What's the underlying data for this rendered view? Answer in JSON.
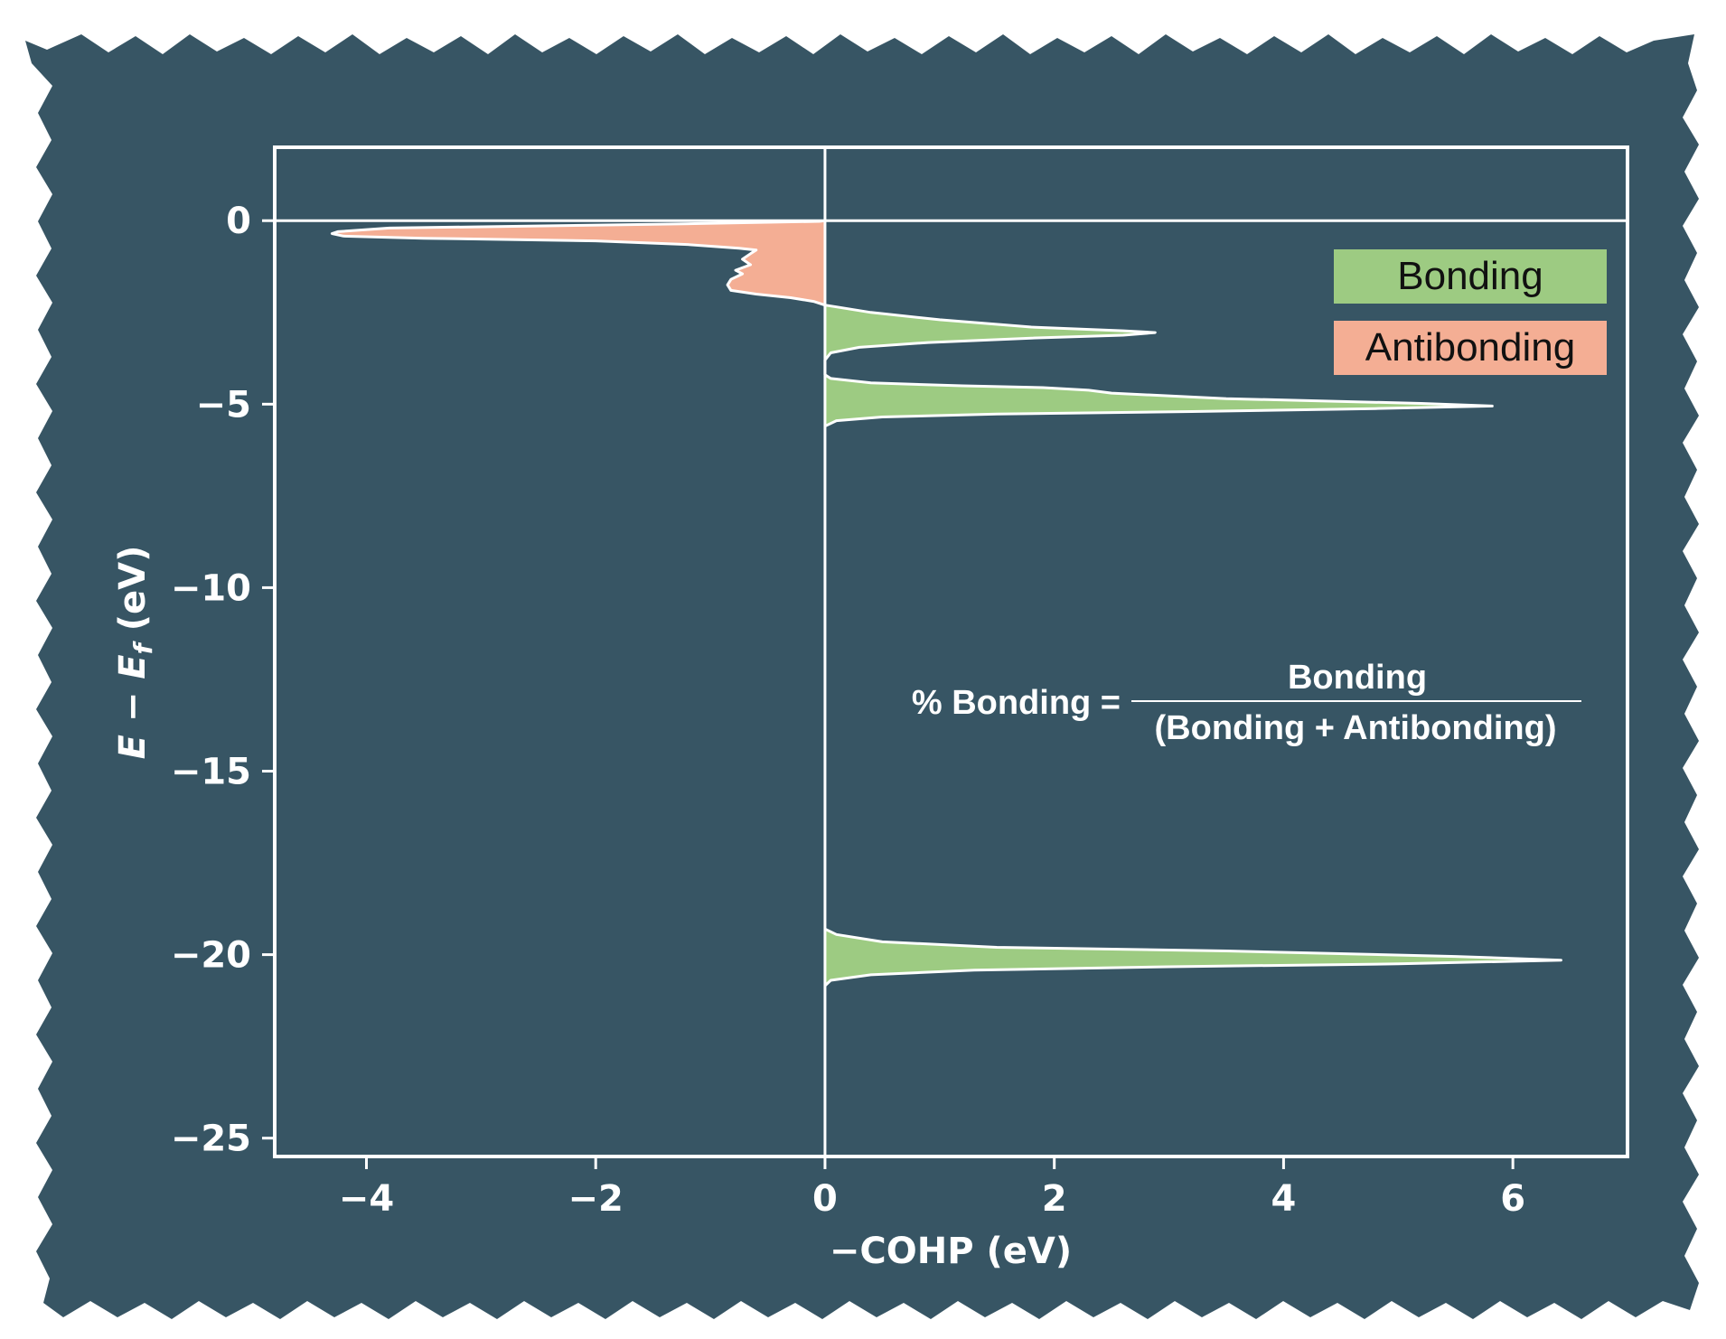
{
  "chart_data": {
    "type": "area",
    "orientation": "horizontal",
    "xlabel": "−COHP (eV)",
    "ylabel": "E − E_f (eV)",
    "ylabel_parts": {
      "e": "E",
      "minus": " − ",
      "ef": "E",
      "sub": "f",
      "unit": " (eV)"
    },
    "xlim": [
      -4.8,
      7.0
    ],
    "ylim": [
      -25.5,
      2.0
    ],
    "xticks": [
      -4,
      -2,
      0,
      2,
      4,
      6
    ],
    "xtick_labels": [
      "−4",
      "−2",
      "0",
      "2",
      "4",
      "6"
    ],
    "yticks": [
      0,
      -5,
      -10,
      -15,
      -20,
      -25
    ],
    "ytick_labels": [
      "0",
      "−5",
      "−10",
      "−15",
      "−20",
      "−25"
    ],
    "fermi_level": 0,
    "grid": false,
    "legend": {
      "placement": "top-right",
      "entries": [
        {
          "label": "Bonding",
          "color": "#9dcb82"
        },
        {
          "label": "Antibonding",
          "color": "#f4ae94"
        }
      ]
    },
    "annotation": {
      "lhs": "% Bonding =",
      "numerator": "Bonding",
      "denominator": "(Bonding + Antibonding)"
    },
    "series": [
      {
        "type": "antibonding",
        "color": "#f4ae94",
        "points": [
          [
            0.0,
            0.0
          ],
          [
            -0.05,
            -0.02
          ],
          [
            -1.5,
            -0.1
          ],
          [
            -3.8,
            -0.2
          ],
          [
            -4.25,
            -0.3
          ],
          [
            -4.3,
            -0.35
          ],
          [
            -4.2,
            -0.42
          ],
          [
            -3.5,
            -0.48
          ],
          [
            -2.0,
            -0.55
          ],
          [
            -1.2,
            -0.65
          ],
          [
            -0.75,
            -0.75
          ],
          [
            -0.6,
            -0.8
          ],
          [
            -0.65,
            -0.9
          ],
          [
            -0.72,
            -1.05
          ],
          [
            -0.65,
            -1.2
          ],
          [
            -0.78,
            -1.35
          ],
          [
            -0.72,
            -1.45
          ],
          [
            -0.82,
            -1.6
          ],
          [
            -0.85,
            -1.75
          ],
          [
            -0.82,
            -1.9
          ],
          [
            -0.6,
            -2.0
          ],
          [
            -0.3,
            -2.1
          ],
          [
            -0.1,
            -2.2
          ],
          [
            0.0,
            -2.3
          ]
        ]
      },
      {
        "type": "bonding",
        "color": "#9dcb82",
        "points": [
          [
            0.0,
            -2.3
          ],
          [
            0.1,
            -2.35
          ],
          [
            0.4,
            -2.5
          ],
          [
            1.0,
            -2.7
          ],
          [
            1.8,
            -2.9
          ],
          [
            2.6,
            -3.0
          ],
          [
            2.88,
            -3.05
          ],
          [
            2.6,
            -3.12
          ],
          [
            1.8,
            -3.2
          ],
          [
            0.9,
            -3.32
          ],
          [
            0.3,
            -3.45
          ],
          [
            0.05,
            -3.6
          ],
          [
            0.0,
            -3.8
          ],
          [
            0.0,
            -4.2
          ],
          [
            0.05,
            -4.3
          ],
          [
            0.4,
            -4.42
          ],
          [
            1.2,
            -4.5
          ],
          [
            1.9,
            -4.55
          ],
          [
            2.3,
            -4.62
          ],
          [
            2.5,
            -4.7
          ],
          [
            3.5,
            -4.85
          ],
          [
            5.2,
            -4.98
          ],
          [
            5.82,
            -5.05
          ],
          [
            4.8,
            -5.12
          ],
          [
            3.2,
            -5.2
          ],
          [
            1.5,
            -5.27
          ],
          [
            0.5,
            -5.35
          ],
          [
            0.1,
            -5.45
          ],
          [
            0.0,
            -5.6
          ]
        ]
      },
      {
        "type": "bonding",
        "color": "#9dcb82",
        "points": [
          [
            0.0,
            -19.3
          ],
          [
            0.1,
            -19.45
          ],
          [
            0.5,
            -19.65
          ],
          [
            1.5,
            -19.8
          ],
          [
            3.5,
            -19.9
          ],
          [
            5.5,
            -20.05
          ],
          [
            6.42,
            -20.15
          ],
          [
            5.0,
            -20.25
          ],
          [
            3.0,
            -20.33
          ],
          [
            1.3,
            -20.42
          ],
          [
            0.4,
            -20.55
          ],
          [
            0.05,
            -20.7
          ],
          [
            0.0,
            -20.85
          ]
        ]
      }
    ]
  }
}
